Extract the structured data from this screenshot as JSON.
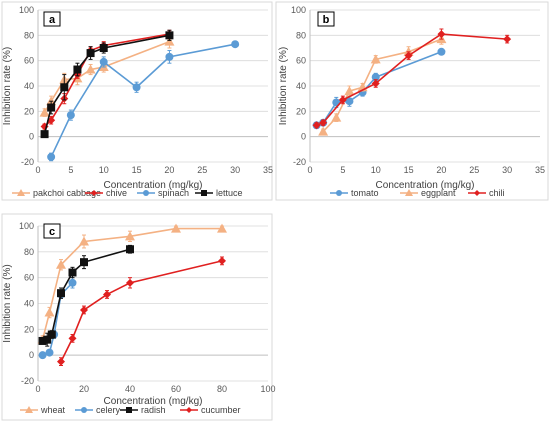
{
  "colors": {
    "orange": "#f4b183",
    "red": "#e02020",
    "blue": "#5b9bd5",
    "black": "#111111",
    "axis": "#bfbfbf",
    "grid": "#d9d9d9"
  },
  "chart_data": [
    {
      "type": "line",
      "panel_label": "a",
      "xlabel": "Concentration (mg/kg)",
      "ylabel": "Inhibition rate (%)",
      "xlim": [
        0,
        35
      ],
      "ylim": [
        -20,
        100
      ],
      "xticks": [
        0,
        5,
        10,
        15,
        20,
        25,
        30,
        35
      ],
      "yticks": [
        -20,
        0,
        20,
        40,
        60,
        80,
        100
      ],
      "grid": "horizontal",
      "legend_position": "bottom",
      "series": [
        {
          "name": "pakchoi cabbage",
          "color": "orange",
          "marker": "triangle",
          "x": [
            1,
            2,
            4,
            6,
            8,
            10,
            20
          ],
          "y": [
            19,
            28,
            45,
            46,
            53,
            55,
            75
          ],
          "err": [
            3,
            4,
            5,
            5,
            4,
            4,
            5
          ]
        },
        {
          "name": "chive",
          "color": "red",
          "marker": "diamond",
          "x": [
            1,
            2,
            4,
            6,
            8,
            10,
            20
          ],
          "y": [
            8,
            13,
            30,
            49,
            68,
            72,
            81
          ],
          "err": [
            2,
            3,
            4,
            3,
            3,
            3,
            3
          ]
        },
        {
          "name": "spinach",
          "color": "blue",
          "marker": "circle",
          "x": [
            2,
            5,
            10,
            15,
            20,
            30
          ],
          "y": [
            -16,
            17,
            59,
            39,
            63,
            73
          ],
          "err": [
            3,
            4,
            4,
            4,
            5,
            2
          ]
        },
        {
          "name": "lettuce",
          "color": "black",
          "marker": "square",
          "x": [
            1,
            2,
            4,
            6,
            8,
            10,
            20
          ],
          "y": [
            2,
            23,
            39,
            53,
            66,
            70,
            80
          ],
          "err": [
            2,
            5,
            10,
            5,
            5,
            4,
            4
          ]
        }
      ]
    },
    {
      "type": "line",
      "panel_label": "b",
      "xlabel": "Concentration (mg/kg)",
      "ylabel": "Inhibition rate (%)",
      "xlim": [
        0,
        35
      ],
      "ylim": [
        -20,
        100
      ],
      "xticks": [
        0,
        5,
        10,
        15,
        20,
        25,
        30,
        35
      ],
      "yticks": [
        -20,
        0,
        20,
        40,
        60,
        80,
        100
      ],
      "grid": "horizontal",
      "legend_position": "bottom",
      "series": [
        {
          "name": "tomato",
          "color": "blue",
          "marker": "circle",
          "x": [
            1,
            2,
            4,
            6,
            8,
            10,
            20
          ],
          "y": [
            9,
            11,
            27,
            28,
            35,
            47,
            67
          ],
          "err": [
            2,
            2,
            4,
            4,
            3,
            3,
            2
          ]
        },
        {
          "name": "eggplant",
          "color": "orange",
          "marker": "triangle",
          "x": [
            2,
            4,
            6,
            8,
            10,
            15,
            20
          ],
          "y": [
            4,
            15,
            36,
            39,
            61,
            67,
            77
          ],
          "err": [
            2,
            3,
            4,
            3,
            3,
            4,
            4
          ]
        },
        {
          "name": "chili",
          "color": "red",
          "marker": "diamond",
          "x": [
            1,
            2,
            5,
            10,
            15,
            20,
            30
          ],
          "y": [
            9,
            11,
            29,
            42,
            64,
            81,
            77
          ],
          "err": [
            2,
            2,
            3,
            3,
            3,
            4,
            3
          ]
        }
      ]
    },
    {
      "type": "line",
      "panel_label": "c",
      "xlabel": "Concentration (mg/kg)",
      "ylabel": "Inhibition rate (%)",
      "xlim": [
        0,
        100
      ],
      "ylim": [
        -20,
        100
      ],
      "xticks": [
        0,
        20,
        40,
        60,
        80,
        100
      ],
      "yticks": [
        -20,
        0,
        20,
        40,
        60,
        80,
        100
      ],
      "grid": "horizontal",
      "legend_position": "bottom",
      "series": [
        {
          "name": "wheat",
          "color": "orange",
          "marker": "triangle",
          "x": [
            2,
            5,
            10,
            20,
            40,
            60,
            80
          ],
          "y": [
            12,
            33,
            70,
            88,
            92,
            98,
            98
          ],
          "err": [
            3,
            4,
            4,
            5,
            4,
            2,
            2
          ]
        },
        {
          "name": "celery",
          "color": "blue",
          "marker": "circle",
          "x": [
            2,
            5,
            7,
            10,
            15
          ],
          "y": [
            0,
            2,
            16,
            47,
            56
          ],
          "err": [
            2,
            2,
            3,
            3,
            4
          ]
        },
        {
          "name": "radish",
          "color": "black",
          "marker": "square",
          "x": [
            2,
            4,
            6,
            10,
            15,
            20,
            40
          ],
          "y": [
            11,
            12,
            16,
            48,
            64,
            72,
            82
          ],
          "err": [
            2,
            5,
            3,
            4,
            4,
            5,
            3
          ]
        },
        {
          "name": "cucumber",
          "color": "red",
          "marker": "diamond",
          "x": [
            10,
            15,
            20,
            30,
            40,
            80
          ],
          "y": [
            -5,
            13,
            35,
            47,
            56,
            73
          ],
          "err": [
            3,
            3,
            3,
            3,
            4,
            3
          ]
        }
      ]
    }
  ]
}
